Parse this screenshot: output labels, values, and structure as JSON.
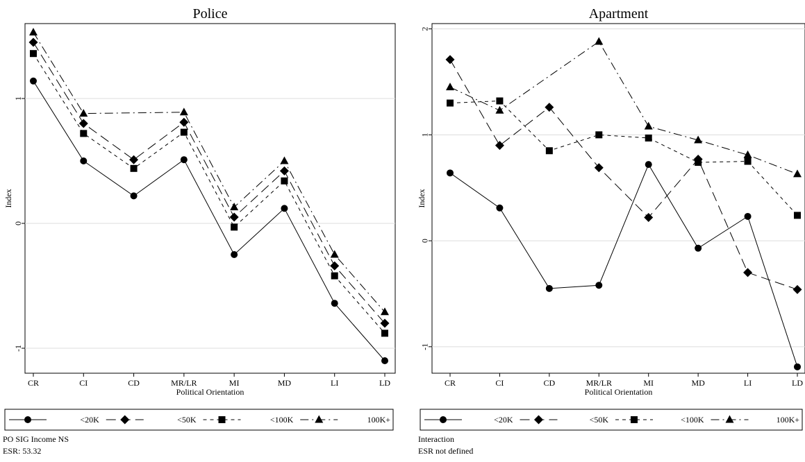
{
  "chart_data": [
    {
      "type": "line",
      "title": "Police",
      "xlabel": "Political Orientation",
      "ylabel": "Index",
      "categories": [
        "CR",
        "CI",
        "CD",
        "MR/LR",
        "MI",
        "MD",
        "LI",
        "LD"
      ],
      "yticks": [
        "-1",
        "0",
        "1"
      ],
      "ylim": [
        -1.2,
        1.6
      ],
      "grid": true,
      "legend_position": "bottom",
      "series": [
        {
          "name": "<20K",
          "marker": "circle",
          "dash": "solid",
          "values": [
            1.14,
            0.5,
            0.22,
            0.51,
            -0.25,
            0.12,
            -0.64,
            -1.1
          ]
        },
        {
          "name": "<50K",
          "marker": "diamond",
          "dash": "longdash",
          "values": [
            1.45,
            0.8,
            0.51,
            0.81,
            0.05,
            0.42,
            -0.34,
            -0.8
          ]
        },
        {
          "name": "<100K",
          "marker": "square",
          "dash": "shortdash",
          "values": [
            1.36,
            0.72,
            0.44,
            0.73,
            -0.03,
            0.34,
            -0.42,
            -0.88
          ]
        },
        {
          "name": "100K+",
          "marker": "triangle",
          "dash": "dashdot",
          "values": [
            1.53,
            0.88,
            null,
            0.89,
            0.13,
            0.5,
            -0.25,
            -0.71
          ]
        }
      ],
      "notes": [
        "PO SIG Income NS",
        "ESR: 53.32"
      ]
    },
    {
      "type": "line",
      "title": "Apartment",
      "xlabel": "Political Orientation",
      "ylabel": "Index",
      "categories": [
        "CR",
        "CI",
        "CD",
        "MR/LR",
        "MI",
        "MD",
        "LI",
        "LD"
      ],
      "yticks": [
        "-1",
        "0",
        "1",
        "2"
      ],
      "ylim": [
        -1.25,
        2.05
      ],
      "grid": true,
      "legend_position": "bottom",
      "series": [
        {
          "name": "<20K",
          "marker": "circle",
          "dash": "solid",
          "values": [
            0.64,
            0.31,
            -0.45,
            -0.42,
            0.72,
            -0.07,
            0.23,
            -1.19
          ]
        },
        {
          "name": "<50K",
          "marker": "diamond",
          "dash": "longdash",
          "values": [
            1.71,
            0.9,
            1.26,
            0.69,
            0.22,
            0.77,
            -0.3,
            -0.46
          ]
        },
        {
          "name": "<100K",
          "marker": "square",
          "dash": "shortdash",
          "values": [
            1.3,
            1.32,
            0.85,
            1.0,
            0.97,
            0.74,
            0.75,
            0.24
          ]
        },
        {
          "name": "100K+",
          "marker": "triangle",
          "dash": "dashdot",
          "values": [
            1.45,
            1.23,
            null,
            1.88,
            1.08,
            0.95,
            0.81,
            0.63
          ]
        }
      ],
      "notes": [
        "Interaction",
        "ESR not defined"
      ]
    }
  ]
}
